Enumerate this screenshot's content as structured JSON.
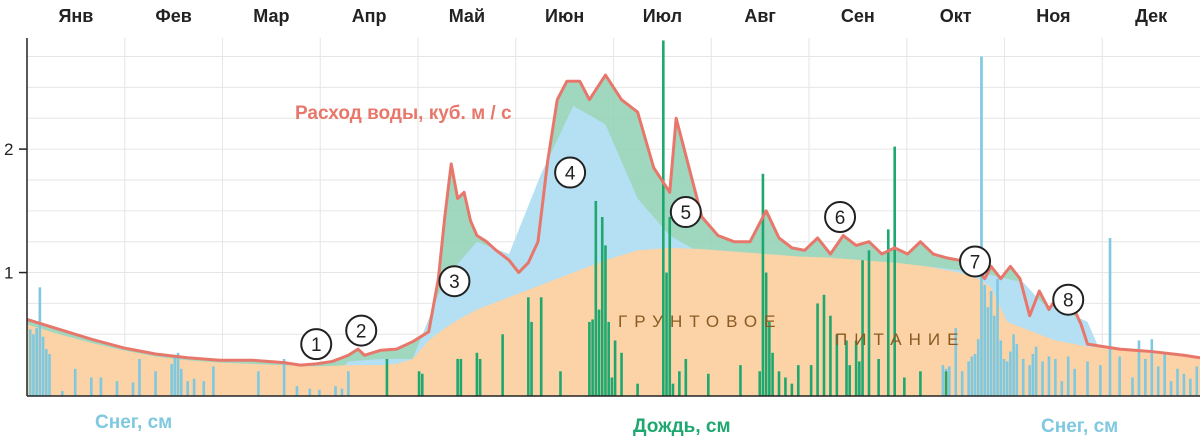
{
  "chart_data": {
    "type": "area",
    "months": [
      "Янв",
      "Фев",
      "Мар",
      "Апр",
      "Май",
      "Июн",
      "Июл",
      "Авг",
      "Сен",
      "Окт",
      "Ноя",
      "Дек"
    ],
    "y_ticks": [
      1,
      2
    ],
    "ylim": [
      0,
      2.9
    ],
    "xlim": [
      0,
      365
    ],
    "grid": true,
    "labels": {
      "flow": "Расход воды, куб. м / с",
      "ground": [
        "ГРУНТОВОЕ",
        "ПИТАНИЕ"
      ],
      "snow_left": "Снег, см",
      "rain": "Дождь, см",
      "snow_right": "Снег, см"
    },
    "markers": [
      {
        "num": "1",
        "day": 90,
        "value": 0.42
      },
      {
        "num": "2",
        "day": 104,
        "value": 0.53
      },
      {
        "num": "3",
        "day": 133,
        "value": 0.93
      },
      {
        "num": "4",
        "day": 169,
        "value": 1.81
      },
      {
        "num": "5",
        "day": 205,
        "value": 1.49
      },
      {
        "num": "6",
        "day": 253,
        "value": 1.45
      },
      {
        "num": "7",
        "day": 295,
        "value": 1.09
      },
      {
        "num": "8",
        "day": 324,
        "value": 0.78
      }
    ],
    "series": [
      {
        "name": "Расход воды, куб. м / с",
        "color": "#e8776b",
        "x": [
          0,
          10,
          20,
          30,
          40,
          50,
          60,
          70,
          80,
          85,
          90,
          95,
          100,
          103,
          105,
          110,
          115,
          120,
          125,
          128,
          130,
          132,
          134,
          136,
          138,
          140,
          143,
          146,
          150,
          153,
          156,
          159,
          162,
          165,
          168,
          172,
          175,
          180,
          185,
          190,
          195,
          200,
          202,
          205,
          210,
          215,
          220,
          225,
          230,
          234,
          238,
          242,
          246,
          250,
          254,
          258,
          262,
          266,
          270,
          274,
          278,
          282,
          286,
          290,
          295,
          298,
          300,
          303,
          306,
          309,
          312,
          315,
          318,
          320,
          322,
          325,
          328,
          330,
          335,
          340,
          350,
          360,
          365
        ],
        "values": [
          0.62,
          0.54,
          0.46,
          0.39,
          0.34,
          0.31,
          0.29,
          0.29,
          0.27,
          0.25,
          0.26,
          0.28,
          0.33,
          0.38,
          0.33,
          0.37,
          0.38,
          0.44,
          0.52,
          0.95,
          1.45,
          1.88,
          1.6,
          1.65,
          1.42,
          1.3,
          1.25,
          1.18,
          1.1,
          1.0,
          1.08,
          1.25,
          1.9,
          2.4,
          2.55,
          2.55,
          2.4,
          2.6,
          2.4,
          2.3,
          1.85,
          1.65,
          2.25,
          1.95,
          1.45,
          1.3,
          1.25,
          1.25,
          1.5,
          1.28,
          1.2,
          1.18,
          1.28,
          1.15,
          1.3,
          1.22,
          1.25,
          1.15,
          1.2,
          1.15,
          1.25,
          1.15,
          1.12,
          1.1,
          1.05,
          0.95,
          1.05,
          0.95,
          1.05,
          0.95,
          0.65,
          0.85,
          0.7,
          0.78,
          0.72,
          0.75,
          0.58,
          0.42,
          0.4,
          0.38,
          0.36,
          0.33,
          0.31
        ]
      },
      {
        "name": "Снег, см",
        "color": "#7ec8e0",
        "x": [
          0,
          10,
          20,
          30,
          40,
          50,
          60,
          70,
          80,
          90,
          100,
          110,
          120,
          130,
          140,
          150,
          160,
          170,
          180,
          190,
          200,
          210,
          220,
          230,
          240,
          250,
          260,
          270,
          280,
          290,
          300,
          310,
          316,
          320,
          330,
          340,
          350,
          360,
          365
        ],
        "values": [
          0,
          0,
          0,
          0,
          0,
          0,
          0,
          0,
          0,
          0,
          0.28,
          0.3,
          0.3,
          0.95,
          1.25,
          1.15,
          1.8,
          2.35,
          2.2,
          1.6,
          1.3,
          1.15,
          1.12,
          1.1,
          1.1,
          1.08,
          1.08,
          1.06,
          1.05,
          1.02,
          0.98,
          0.92,
          0.75,
          0.72,
          0.6,
          0,
          0,
          0,
          0
        ]
      },
      {
        "name": "ГРУНТОВОЕ ПИТАНИЕ",
        "color": "#fbd3a6",
        "x": [
          0,
          10,
          20,
          30,
          40,
          50,
          60,
          70,
          80,
          90,
          100,
          110,
          115,
          120,
          125,
          130,
          135,
          140,
          150,
          160,
          170,
          180,
          190,
          200,
          210,
          220,
          230,
          240,
          250,
          260,
          270,
          280,
          290,
          296,
          300,
          305,
          310,
          315,
          320,
          330,
          340,
          350,
          360,
          365
        ],
        "values": [
          0.58,
          0.5,
          0.43,
          0.37,
          0.32,
          0.29,
          0.27,
          0.26,
          0.25,
          0.24,
          0.25,
          0.25,
          0.26,
          0.3,
          0.45,
          0.55,
          0.63,
          0.7,
          0.8,
          0.9,
          1.0,
          1.1,
          1.18,
          1.2,
          1.19,
          1.17,
          1.15,
          1.13,
          1.12,
          1.1,
          1.08,
          1.05,
          1.0,
          0.95,
          0.88,
          0.6,
          0.55,
          0.5,
          0.45,
          0.4,
          0.38,
          0.36,
          0.33,
          0.31
        ]
      }
    ],
    "snow_bars": {
      "color": "#7ec8e0",
      "x": [
        1,
        2,
        3,
        4,
        5,
        6,
        7,
        11,
        15,
        20,
        23,
        28,
        33,
        35,
        40,
        45,
        46,
        47,
        48,
        50,
        52,
        55,
        58,
        72,
        80,
        84,
        88,
        91,
        96,
        98,
        100,
        285,
        286,
        287,
        289,
        291,
        293,
        294,
        295,
        296,
        297,
        298,
        299,
        300,
        301,
        302,
        303,
        304,
        305,
        306,
        307,
        308,
        310,
        312,
        313,
        314,
        316,
        318,
        320,
        322,
        324,
        326,
        330,
        334,
        337,
        340,
        344,
        346,
        348,
        350,
        352,
        354,
        356,
        358,
        360,
        362,
        364
      ],
      "values": [
        0.54,
        0.5,
        0.55,
        0.88,
        0.48,
        0.38,
        0.34,
        0.04,
        0.22,
        0.15,
        0.15,
        0.12,
        0.11,
        0.3,
        0.2,
        0.26,
        0.32,
        0.35,
        0.22,
        0.12,
        0.14,
        0.12,
        0.24,
        0.2,
        0.3,
        0.08,
        0.06,
        0.05,
        0.08,
        0.06,
        0.2,
        0.25,
        0.22,
        0.24,
        0.55,
        0.2,
        0.28,
        0.32,
        0.34,
        0.46,
        2.75,
        0.9,
        0.72,
        0.85,
        0.65,
        0.95,
        0.45,
        0.3,
        0.28,
        0.36,
        0.5,
        0.42,
        0.3,
        0.25,
        0.34,
        0.4,
        0.28,
        0.32,
        0.3,
        0.12,
        0.32,
        0.22,
        0.28,
        0.25,
        1.28,
        0.32,
        0.15,
        0.45,
        0.3,
        0.46,
        0.24,
        0.35,
        0.12,
        0.22,
        0.18,
        0.14,
        0.24
      ]
    },
    "rain_bars": {
      "color": "#1ea870",
      "x": [
        112,
        122,
        123,
        134,
        135,
        140,
        141,
        148,
        156,
        157,
        160,
        166,
        175,
        176,
        177,
        178,
        179,
        180,
        181,
        182,
        183,
        185,
        190,
        198,
        199,
        200,
        201,
        203,
        205,
        212,
        222,
        228,
        229,
        230,
        231,
        232,
        234,
        236,
        238,
        240,
        244,
        246,
        248,
        250,
        252,
        255,
        256,
        258,
        259,
        260,
        262,
        265,
        268,
        270,
        273,
        278,
        286
      ],
      "values": [
        0.3,
        0.2,
        0.18,
        0.3,
        0.3,
        0.35,
        0.3,
        0.5,
        0.8,
        0.6,
        0.8,
        0.2,
        0.6,
        0.62,
        1.58,
        0.7,
        1.45,
        1.22,
        0.6,
        0.15,
        0.45,
        0.35,
        0.1,
        2.88,
        1.0,
        1.45,
        0.1,
        0.2,
        0.3,
        0.18,
        0.25,
        0.2,
        1.8,
        1.0,
        0.6,
        0.35,
        0.2,
        0.15,
        0.1,
        0.25,
        0.25,
        0.75,
        0.82,
        0.65,
        0.5,
        0.45,
        0.25,
        0.45,
        0.28,
        1.1,
        1.18,
        0.3,
        1.35,
        2.02,
        0.15,
        0.2,
        0.2
      ]
    }
  }
}
